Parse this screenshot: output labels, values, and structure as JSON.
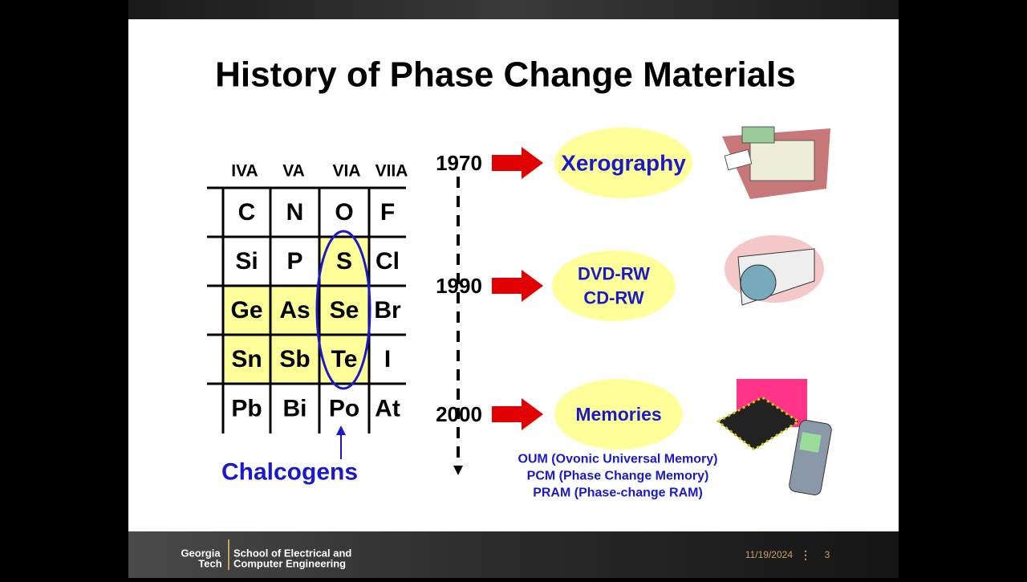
{
  "title": "History of Phase Change Materials",
  "table": {
    "headers": [
      "IVA",
      "VA",
      "VIA",
      "VIIA"
    ],
    "rows": [
      [
        "C",
        "N",
        "O",
        "F"
      ],
      [
        "Si",
        "P",
        "S",
        "Cl"
      ],
      [
        "Ge",
        "As",
        "Se",
        "Br"
      ],
      [
        "Sn",
        "Sb",
        "Te",
        "I"
      ],
      [
        "Pb",
        "Bi",
        "Po",
        "At"
      ]
    ]
  },
  "chalcogens_label": "Chalcogens",
  "timeline": [
    {
      "year": "1970",
      "label": [
        "Xerography"
      ]
    },
    {
      "year": "1990",
      "label": [
        "DVD-RW",
        "CD-RW"
      ]
    },
    {
      "year": "2000",
      "label": [
        "Memories"
      ]
    }
  ],
  "memory_notes": [
    "OUM (Ovonic Universal Memory)",
    "PCM (Phase Change Memory)",
    "PRAM (Phase-change RAM)"
  ],
  "footer": {
    "logo": [
      "Georgia",
      "Tech"
    ],
    "school": [
      "School of Electrical and",
      "Computer Engineering"
    ],
    "date": "11/19/2024",
    "page": "3"
  }
}
